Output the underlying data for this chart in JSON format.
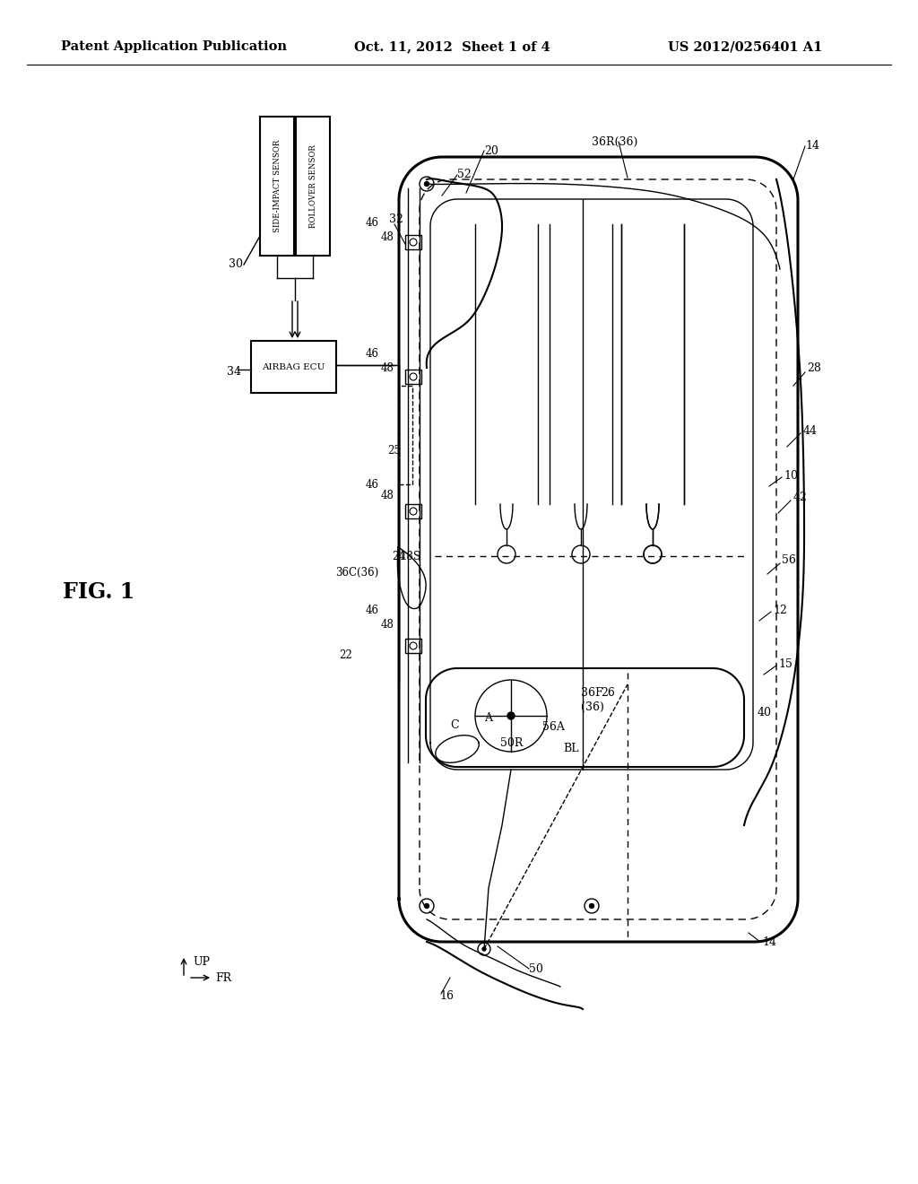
{
  "bg_color": "#ffffff",
  "header_left": "Patent Application Publication",
  "header_mid": "Oct. 11, 2012  Sheet 1 of 4",
  "header_right": "US 2012/0256401 A1",
  "fig_label": "FIG. 1"
}
